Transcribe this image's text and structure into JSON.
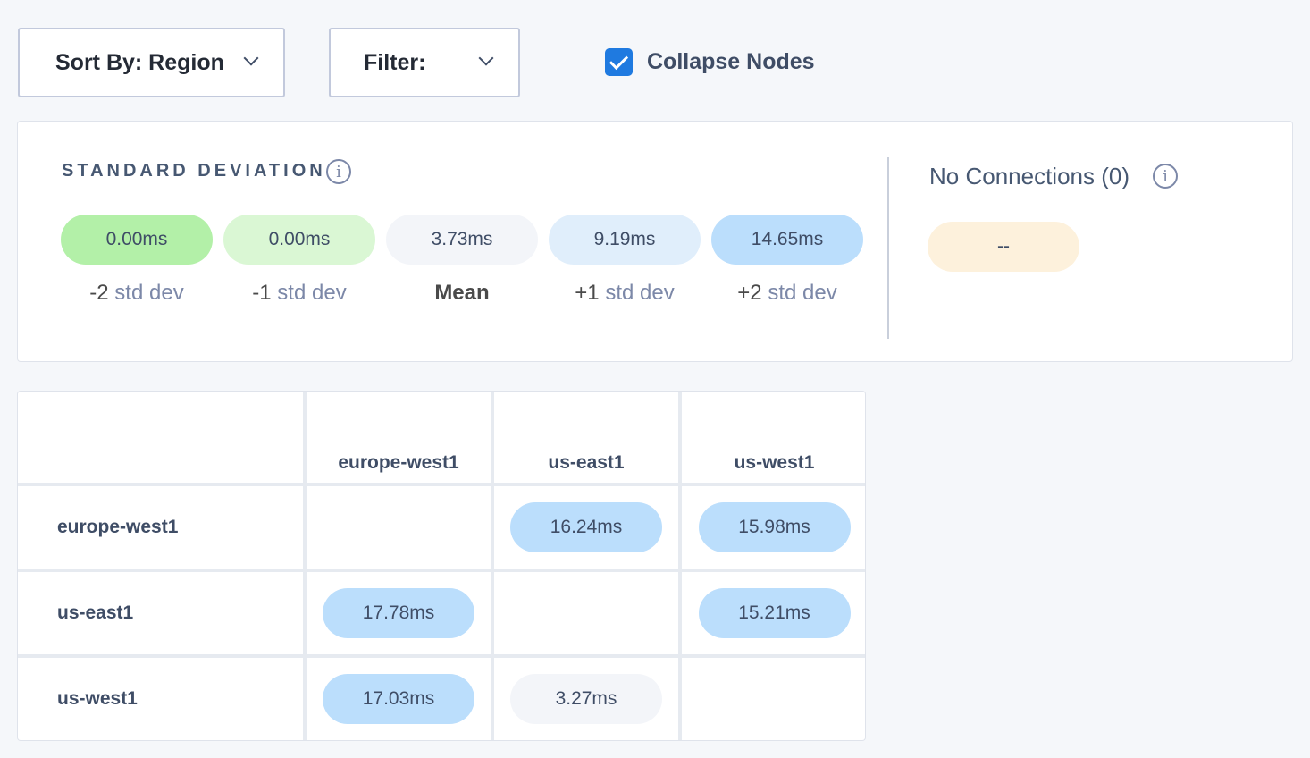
{
  "toolbar": {
    "sort_label": "Sort By: Region",
    "filter_label": "Filter:",
    "collapse_label": "Collapse Nodes",
    "collapse_checked": true
  },
  "std": {
    "title": "STANDARD DEVIATION",
    "items": [
      {
        "value": "0.00ms",
        "num": "-2",
        "unit": " std dev",
        "color": "#b3f0a8"
      },
      {
        "value": "0.00ms",
        "num": "-1",
        "unit": " std dev",
        "color": "#daf7d4"
      },
      {
        "value": "3.73ms",
        "num": "Mean",
        "unit": "",
        "color": "#f3f5f9"
      },
      {
        "value": "9.19ms",
        "num": "+1",
        "unit": " std dev",
        "color": "#e0eefb"
      },
      {
        "value": "14.65ms",
        "num": "+2",
        "unit": " std dev",
        "color": "#bbdefc"
      }
    ]
  },
  "noconn": {
    "label": "No Connections (0)",
    "value": "--",
    "color": "#fdf1dc"
  },
  "matrix": {
    "columns": [
      "europe-west1",
      "us-east1",
      "us-west1"
    ],
    "rows": [
      {
        "name": "europe-west1",
        "cells": [
          "",
          "16.24ms",
          "15.98ms"
        ]
      },
      {
        "name": "us-east1",
        "cells": [
          "17.78ms",
          "",
          "15.21ms"
        ]
      },
      {
        "name": "us-west1",
        "cells": [
          "17.03ms",
          "3.27ms",
          ""
        ]
      }
    ],
    "cell_colors": [
      [
        "",
        "#bbdefc",
        "#bbdefc"
      ],
      [
        "#bbdefc",
        "",
        "#bbdefc"
      ],
      [
        "#bbdefc",
        "#f3f5f9",
        ""
      ]
    ]
  }
}
